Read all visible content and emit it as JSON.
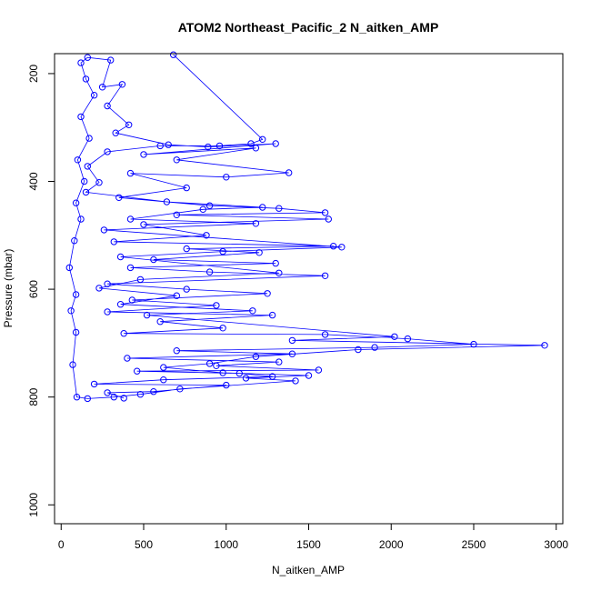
{
  "chart_data": {
    "type": "scatter",
    "title": "ATOM2 Northeast_Pacific_2 N_aitken_AMP",
    "xlabel": "N_aitken_AMP",
    "ylabel": "Pressure (mbar)",
    "xlim": [
      -40,
      3040
    ],
    "ylim": [
      1035,
      163
    ],
    "y_reversed": true,
    "grid": false,
    "x_ticks": [
      0,
      500,
      1000,
      1500,
      2000,
      2500,
      3000
    ],
    "y_ticks": [
      200,
      400,
      600,
      800,
      1000
    ],
    "colors": {
      "series": "#0000ff",
      "axis": "#000000"
    },
    "markers": "open-circle",
    "connected_line": true,
    "series": [
      {
        "points": [
          [
            680,
            165
          ],
          [
            1220,
            322
          ],
          [
            1150,
            330
          ],
          [
            960,
            334
          ],
          [
            600,
            334
          ],
          [
            280,
            345
          ],
          [
            160,
            372
          ],
          [
            230,
            402
          ],
          [
            150,
            420
          ],
          [
            640,
            438
          ],
          [
            1220,
            448
          ],
          [
            860,
            452
          ],
          [
            420,
            470
          ],
          [
            1180,
            478
          ],
          [
            260,
            490
          ],
          [
            1700,
            522
          ],
          [
            980,
            530
          ],
          [
            360,
            540
          ],
          [
            1320,
            570
          ],
          [
            480,
            582
          ],
          [
            230,
            598
          ],
          [
            700,
            612
          ],
          [
            360,
            628
          ],
          [
            1160,
            640
          ],
          [
            520,
            648
          ],
          [
            2020,
            688
          ],
          [
            1400,
            695
          ],
          [
            2930,
            704
          ],
          [
            1800,
            712
          ],
          [
            1180,
            725
          ],
          [
            900,
            738
          ],
          [
            620,
            745
          ],
          [
            980,
            755
          ],
          [
            1500,
            760
          ],
          [
            1120,
            765
          ],
          [
            1420,
            770
          ],
          [
            720,
            785
          ],
          [
            480,
            795
          ],
          [
            320,
            800
          ],
          [
            160,
            803
          ],
          [
            95,
            800
          ],
          [
            70,
            740
          ],
          [
            90,
            680
          ],
          [
            60,
            640
          ],
          [
            90,
            610
          ],
          [
            50,
            560
          ],
          [
            80,
            510
          ],
          [
            120,
            470
          ],
          [
            90,
            440
          ],
          [
            140,
            400
          ],
          [
            100,
            360
          ],
          [
            170,
            320
          ],
          [
            120,
            280
          ],
          [
            200,
            240
          ],
          [
            150,
            210
          ],
          [
            120,
            180
          ],
          [
            160,
            170
          ],
          [
            300,
            175
          ],
          [
            250,
            225
          ],
          [
            370,
            220
          ],
          [
            280,
            260
          ],
          [
            410,
            295
          ],
          [
            330,
            310
          ],
          [
            650,
            332
          ],
          [
            890,
            336
          ],
          [
            1300,
            330
          ],
          [
            500,
            350
          ],
          [
            1180,
            338
          ],
          [
            700,
            360
          ],
          [
            1380,
            384
          ],
          [
            1000,
            392
          ],
          [
            420,
            385
          ],
          [
            760,
            412
          ],
          [
            350,
            430
          ],
          [
            900,
            445
          ],
          [
            1320,
            450
          ],
          [
            1600,
            458
          ],
          [
            700,
            462
          ],
          [
            1620,
            470
          ],
          [
            500,
            480
          ],
          [
            880,
            500
          ],
          [
            320,
            512
          ],
          [
            1650,
            520
          ],
          [
            760,
            525
          ],
          [
            1200,
            532
          ],
          [
            560,
            545
          ],
          [
            1300,
            552
          ],
          [
            420,
            560
          ],
          [
            900,
            568
          ],
          [
            1600,
            575
          ],
          [
            280,
            590
          ],
          [
            760,
            600
          ],
          [
            1250,
            608
          ],
          [
            430,
            620
          ],
          [
            940,
            630
          ],
          [
            280,
            642
          ],
          [
            1280,
            648
          ],
          [
            600,
            660
          ],
          [
            980,
            672
          ],
          [
            380,
            682
          ],
          [
            1600,
            684
          ],
          [
            2100,
            692
          ],
          [
            2500,
            702
          ],
          [
            1900,
            708
          ],
          [
            700,
            714
          ],
          [
            1400,
            720
          ],
          [
            400,
            728
          ],
          [
            1320,
            735
          ],
          [
            940,
            742
          ],
          [
            1560,
            750
          ],
          [
            460,
            752
          ],
          [
            1080,
            756
          ],
          [
            1280,
            762
          ],
          [
            620,
            768
          ],
          [
            200,
            776
          ],
          [
            1000,
            778
          ],
          [
            560,
            790
          ],
          [
            280,
            792
          ],
          [
            380,
            802
          ]
        ]
      }
    ]
  }
}
